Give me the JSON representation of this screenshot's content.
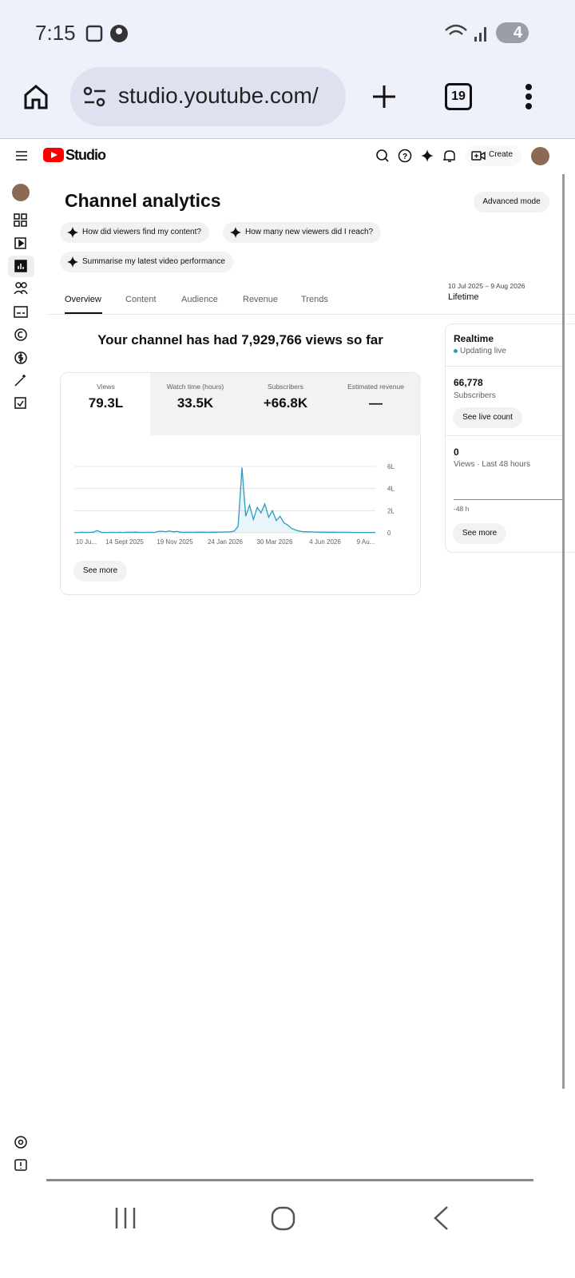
{
  "status_bar": {
    "time": "7:15",
    "battery": "4"
  },
  "browser": {
    "url": "studio.youtube.com/",
    "tabs": "19"
  },
  "header": {
    "logo": "Studio",
    "create": "Create"
  },
  "page": {
    "title": "Channel analytics",
    "advanced": "Advanced mode"
  },
  "suggestions": [
    "How did viewers find my content?",
    "How many new viewers did I reach?",
    "Summarise my latest video performance"
  ],
  "tabs": [
    "Overview",
    "Content",
    "Audience",
    "Revenue",
    "Trends"
  ],
  "date_range": {
    "range": "10 Jul 2025 – 9 Aug 2026",
    "label": "Lifetime"
  },
  "headline": "Your channel has had 7,929,766 views so far",
  "metrics": [
    {
      "label": "Views",
      "value": "79.3L"
    },
    {
      "label": "Watch time (hours)",
      "value": "33.5K"
    },
    {
      "label": "Subscribers",
      "value": "+66.8K"
    },
    {
      "label": "Estimated revenue",
      "value": "—"
    }
  ],
  "chart_data": {
    "type": "line",
    "color": "#2b9cc2",
    "values": [
      3000,
      3000,
      4000,
      3000,
      4000,
      5000,
      20000,
      4000,
      3000,
      3000,
      4000,
      3000,
      4000,
      3000,
      5000,
      4000,
      6000,
      4000,
      3000,
      4000,
      4000,
      3000,
      12000,
      14000,
      10000,
      16000,
      9000,
      12000,
      5000,
      4000,
      5000,
      4000,
      5000,
      6000,
      5000,
      4000,
      6000,
      5000,
      7000,
      6000,
      8000,
      9000,
      15000,
      60000,
      590000,
      150000,
      250000,
      120000,
      230000,
      180000,
      260000,
      140000,
      200000,
      110000,
      150000,
      90000,
      70000,
      40000,
      25000,
      15000,
      10000,
      9000,
      8000,
      7000,
      6000,
      6000,
      5000,
      5000,
      5000,
      4000,
      4000,
      4000,
      4000,
      3000,
      3000,
      3000,
      3000,
      3000,
      3000,
      3000
    ],
    "ylim": [
      0,
      600000
    ],
    "yticks": [
      {
        "value": 600000,
        "label": "6L"
      },
      {
        "value": 400000,
        "label": "4L"
      },
      {
        "value": 200000,
        "label": "2L"
      },
      0
    ],
    "xtick_labels": [
      "10 Ju...",
      "14 Sept 2025",
      "19 Nov 2025",
      "24 Jan 2026",
      "30 Mar 2026",
      "4 Jun 2026",
      "9 Au..."
    ],
    "grid": true
  },
  "see_more": "See more",
  "realtime": {
    "title": "Realtime",
    "status": "Updating live",
    "subscribers": "66,778",
    "subscribers_label": "Subscribers",
    "live_count": "See live count",
    "views": "0",
    "views_label": "Views · Last 48 hours",
    "axis_label": "-48 h",
    "see_more": "See more"
  }
}
